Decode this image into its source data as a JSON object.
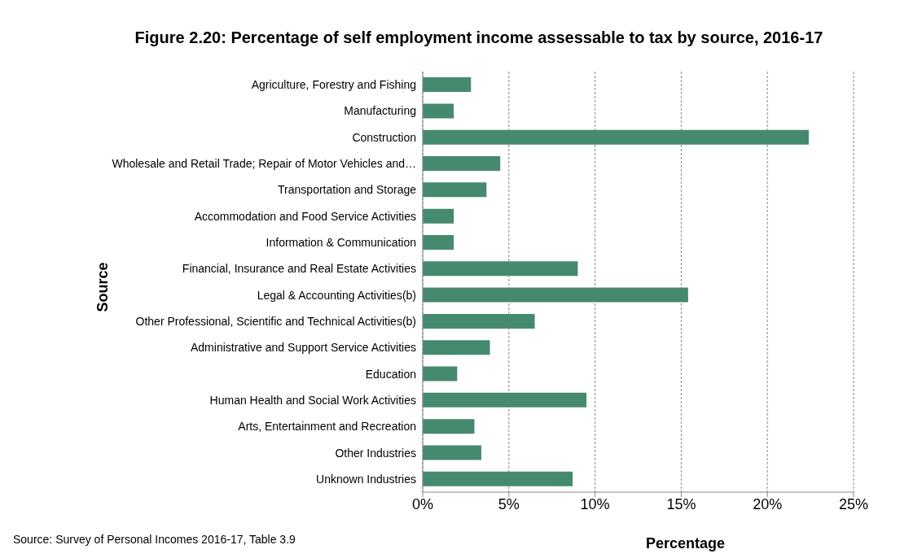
{
  "chart_data": {
    "type": "bar",
    "orientation": "horizontal",
    "title": "Figure 2.20: Percentage of self employment income assessable to tax by source, 2016-17",
    "xlabel": "Percentage",
    "ylabel": "Source",
    "categories": [
      "Agriculture, Forestry and Fishing",
      "Manufacturing",
      "Construction",
      "Wholesale and Retail Trade; Repair of Motor Vehicles and…",
      "Transportation and Storage",
      "Accommodation and Food Service Activities",
      "Information & Communication",
      "Financial, Insurance and Real Estate Activities",
      "Legal & Accounting Activities(b)",
      "Other Professional, Scientific and Technical Activities(b)",
      "Administrative and Support Service Activities",
      "Education",
      "Human Health and Social Work Activities",
      "Arts, Entertainment and Recreation",
      "Other Industries",
      "Unknown Industries"
    ],
    "values": [
      2.8,
      1.8,
      22.4,
      4.5,
      3.7,
      1.8,
      1.8,
      9.0,
      15.4,
      6.5,
      3.9,
      2.0,
      9.5,
      3.0,
      3.4,
      8.7
    ],
    "color": "#458a6e",
    "xlim": [
      0,
      25
    ],
    "xticks": [
      {
        "value": 0,
        "label": "0%"
      },
      {
        "value": 5,
        "label": "5%"
      },
      {
        "value": 10,
        "label": "10%"
      },
      {
        "value": 15,
        "label": "15%"
      },
      {
        "value": 20,
        "label": "20%"
      },
      {
        "value": 25,
        "label": "25%"
      }
    ],
    "grid": "x",
    "legend": false,
    "annotations": [
      "Source: Survey of Personal Incomes 2016-17, Table 3.9"
    ]
  }
}
